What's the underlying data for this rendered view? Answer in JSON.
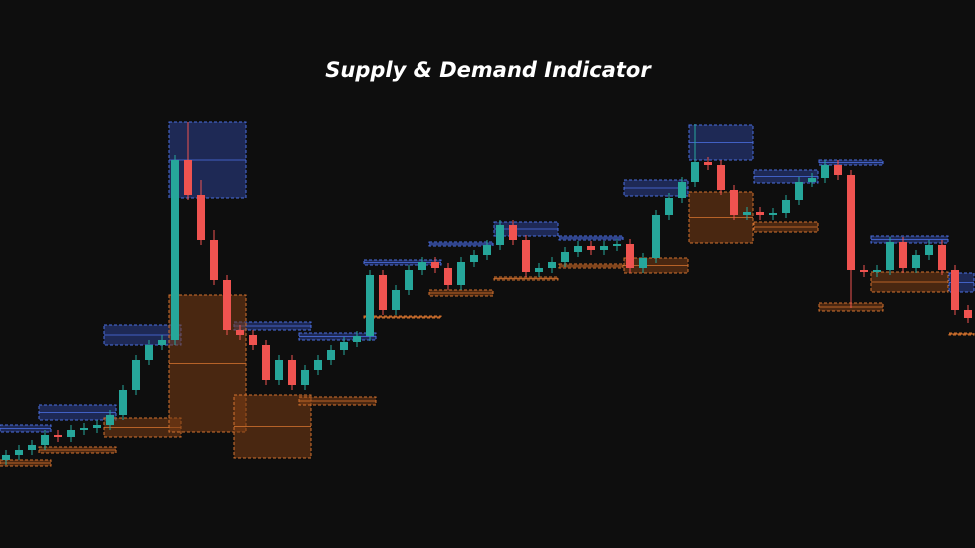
{
  "chart_data": {
    "type": "candlestick",
    "title": "Supply & Demand Indicator",
    "ylim": [
      0,
      548
    ],
    "up_color": "#26a69a",
    "down_color": "#ef5350",
    "supply_color": "#2b3f8f",
    "demand_color": "#7a3d14",
    "opens": [
      88,
      93,
      98,
      103,
      113,
      111,
      118,
      120,
      123,
      133,
      158,
      188,
      203,
      208,
      388,
      353,
      308,
      268,
      218,
      213,
      203,
      168,
      188,
      163,
      178,
      188,
      198,
      206,
      212,
      273,
      238,
      258,
      278,
      286,
      280,
      263,
      286,
      293,
      303,
      323,
      308,
      276,
      280,
      286,
      296,
      302,
      298,
      302,
      304,
      280,
      290,
      333,
      350,
      366,
      386,
      383,
      358,
      333,
      336,
      333,
      335,
      348,
      366,
      370,
      383,
      373,
      278,
      276,
      278,
      306,
      280,
      293,
      303,
      278,
      238
    ],
    "highs": [
      98,
      103,
      108,
      118,
      118,
      123,
      125,
      128,
      138,
      163,
      193,
      208,
      213,
      393,
      426,
      368,
      318,
      273,
      223,
      218,
      208,
      193,
      193,
      183,
      193,
      203,
      211,
      217,
      278,
      278,
      263,
      283,
      291,
      291,
      285,
      291,
      298,
      308,
      328,
      328,
      313,
      285,
      291,
      301,
      307,
      307,
      307,
      309,
      309,
      295,
      338,
      355,
      371,
      424,
      391,
      388,
      363,
      341,
      341,
      340,
      353,
      371,
      375,
      388,
      388,
      378,
      283,
      283,
      311,
      311,
      298,
      308,
      308,
      283,
      243
    ],
    "lows": [
      83,
      88,
      93,
      98,
      106,
      106,
      113,
      115,
      118,
      128,
      153,
      183,
      198,
      203,
      348,
      303,
      263,
      213,
      208,
      198,
      163,
      163,
      158,
      158,
      173,
      183,
      193,
      201,
      207,
      233,
      233,
      253,
      273,
      275,
      258,
      258,
      281,
      288,
      298,
      303,
      271,
      271,
      275,
      281,
      291,
      293,
      293,
      297,
      275,
      275,
      285,
      328,
      345,
      361,
      378,
      353,
      328,
      328,
      328,
      328,
      330,
      343,
      361,
      365,
      368,
      240,
      271,
      271,
      273,
      275,
      275,
      288,
      273,
      233,
      225
    ],
    "closes": [
      93,
      98,
      103,
      113,
      111,
      118,
      120,
      123,
      133,
      158,
      188,
      203,
      208,
      388,
      353,
      308,
      268,
      218,
      213,
      203,
      168,
      188,
      163,
      178,
      188,
      198,
      206,
      212,
      273,
      238,
      258,
      278,
      286,
      280,
      263,
      286,
      293,
      303,
      323,
      308,
      276,
      280,
      286,
      296,
      302,
      298,
      302,
      304,
      280,
      290,
      333,
      350,
      366,
      386,
      383,
      358,
      333,
      336,
      333,
      335,
      348,
      366,
      370,
      383,
      373,
      278,
      276,
      278,
      306,
      280,
      293,
      303,
      278,
      238,
      230
    ],
    "supply_zones": [
      {
        "start": 0,
        "end": 3,
        "top": 123,
        "bottom": 116
      },
      {
        "start": 3,
        "end": 8,
        "top": 143,
        "bottom": 128
      },
      {
        "start": 8,
        "end": 13,
        "top": 223,
        "bottom": 203
      },
      {
        "start": 13,
        "end": 18,
        "top": 426,
        "bottom": 350
      },
      {
        "start": 18,
        "end": 23,
        "top": 226,
        "bottom": 218
      },
      {
        "start": 23,
        "end": 28,
        "top": 215,
        "bottom": 208
      },
      {
        "start": 28,
        "end": 33,
        "top": 288,
        "bottom": 283
      },
      {
        "start": 33,
        "end": 37,
        "top": 306,
        "bottom": 302
      },
      {
        "start": 38,
        "end": 42,
        "top": 326,
        "bottom": 312
      },
      {
        "start": 43,
        "end": 47,
        "top": 312,
        "bottom": 308
      },
      {
        "start": 48,
        "end": 52,
        "top": 368,
        "bottom": 352
      },
      {
        "start": 53,
        "end": 57,
        "top": 423,
        "bottom": 388
      },
      {
        "start": 58,
        "end": 62,
        "top": 378,
        "bottom": 365
      },
      {
        "start": 63,
        "end": 67,
        "top": 388,
        "bottom": 383
      },
      {
        "start": 67,
        "end": 72,
        "top": 312,
        "bottom": 305
      },
      {
        "start": 73,
        "end": 74,
        "top": 275,
        "bottom": 256
      }
    ],
    "demand_zones": [
      {
        "start": 0,
        "end": 3,
        "top": 88,
        "bottom": 82
      },
      {
        "start": 3,
        "end": 8,
        "top": 101,
        "bottom": 95
      },
      {
        "start": 8,
        "end": 13,
        "top": 130,
        "bottom": 111
      },
      {
        "start": 13,
        "end": 18,
        "top": 253,
        "bottom": 116
      },
      {
        "start": 18,
        "end": 23,
        "top": 153,
        "bottom": 90
      },
      {
        "start": 23,
        "end": 28,
        "top": 151,
        "bottom": 143
      },
      {
        "start": 28,
        "end": 33,
        "top": 232,
        "bottom": 230
      },
      {
        "start": 33,
        "end": 37,
        "top": 258,
        "bottom": 252
      },
      {
        "start": 38,
        "end": 42,
        "top": 271,
        "bottom": 268
      },
      {
        "start": 43,
        "end": 47,
        "top": 284,
        "bottom": 280
      },
      {
        "start": 48,
        "end": 52,
        "top": 290,
        "bottom": 275
      },
      {
        "start": 53,
        "end": 57,
        "top": 356,
        "bottom": 305
      },
      {
        "start": 58,
        "end": 62,
        "top": 326,
        "bottom": 316
      },
      {
        "start": 63,
        "end": 67,
        "top": 245,
        "bottom": 237
      },
      {
        "start": 67,
        "end": 72,
        "top": 276,
        "bottom": 256
      },
      {
        "start": 73,
        "end": 74,
        "top": 215,
        "bottom": 213
      }
    ]
  }
}
